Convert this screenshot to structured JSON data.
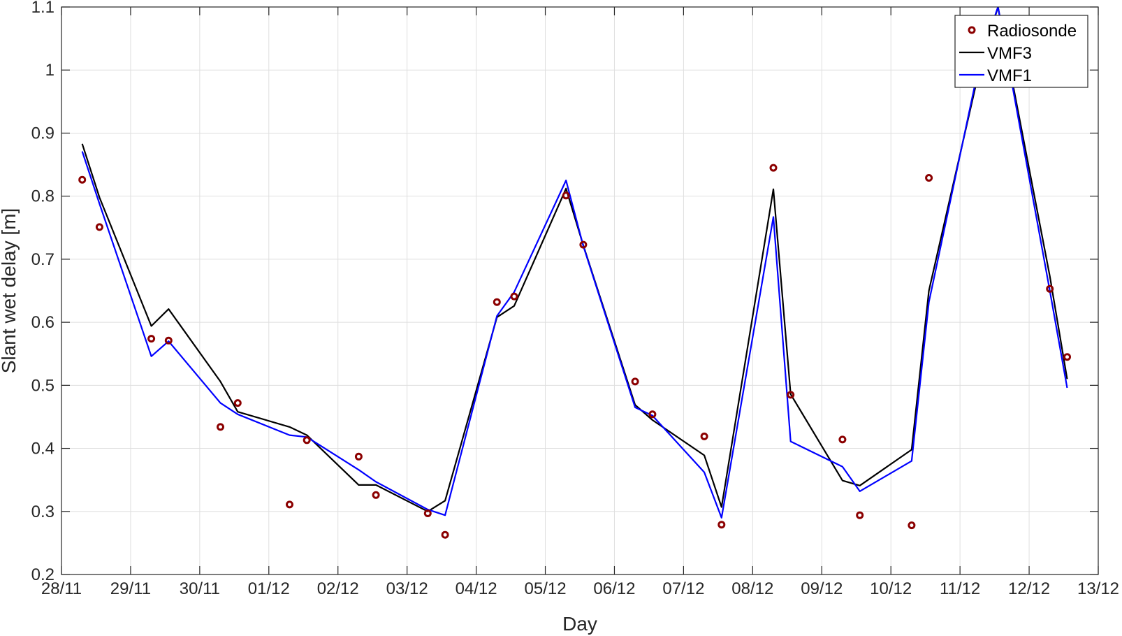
{
  "chart_data": {
    "type": "line",
    "xlabel": "Day",
    "ylabel": "Slant wet delay [m]",
    "xlim": [
      0,
      15
    ],
    "ylim": [
      0.2,
      1.1
    ],
    "x_ticks": [
      0,
      1,
      2,
      3,
      4,
      5,
      6,
      7,
      8,
      9,
      10,
      11,
      12,
      13,
      14,
      15
    ],
    "x_tick_labels": [
      "28/11",
      "29/11",
      "30/11",
      "01/12",
      "02/12",
      "03/12",
      "04/12",
      "05/12",
      "06/12",
      "07/12",
      "08/12",
      "09/12",
      "10/12",
      "11/12",
      "12/12",
      "13/12"
    ],
    "y_ticks": [
      0.2,
      0.3,
      0.4,
      0.5,
      0.6,
      0.7,
      0.8,
      0.9,
      1.0,
      1.1
    ],
    "y_tick_labels": [
      "0.2",
      "0.3",
      "0.4",
      "0.5",
      "0.6",
      "0.7",
      "0.8",
      "0.9",
      "1",
      "1.1"
    ],
    "grid": true,
    "legend_position": "top-right",
    "series": [
      {
        "name": "Radiosonde",
        "style": "markers",
        "color": "#8b0000",
        "x": [
          0.3,
          0.55,
          1.3,
          1.55,
          2.3,
          2.55,
          3.3,
          3.55,
          4.3,
          4.55,
          5.3,
          5.55,
          6.3,
          6.55,
          7.3,
          7.55,
          8.3,
          8.55,
          9.3,
          9.55,
          10.3,
          10.55,
          11.3,
          11.55,
          12.3,
          12.55,
          13.3,
          13.55,
          14.3,
          14.55
        ],
        "y": [
          0.826,
          0.751,
          0.574,
          0.571,
          0.434,
          0.472,
          0.311,
          0.413,
          0.387,
          0.326,
          0.297,
          0.263,
          0.632,
          0.641,
          0.801,
          0.723,
          0.506,
          0.454,
          0.419,
          0.279,
          0.845,
          0.485,
          0.414,
          0.294,
          0.278,
          0.829,
          1.025,
          1.055,
          0.653,
          0.545
        ]
      },
      {
        "name": "VMF3",
        "style": "line",
        "color": "#000000",
        "x": [
          0.3,
          0.55,
          1.3,
          1.55,
          2.3,
          2.55,
          3.3,
          3.55,
          4.3,
          4.55,
          5.3,
          5.55,
          6.3,
          6.55,
          7.3,
          7.55,
          8.3,
          8.55,
          9.3,
          9.55,
          10.3,
          10.55,
          11.3,
          11.55,
          12.3,
          12.55,
          13.3,
          13.55,
          14.3,
          14.55
        ],
        "y": [
          0.883,
          0.798,
          0.594,
          0.621,
          0.506,
          0.458,
          0.434,
          0.421,
          0.342,
          0.342,
          0.3,
          0.317,
          0.608,
          0.626,
          0.812,
          0.722,
          0.469,
          0.445,
          0.389,
          0.307,
          0.811,
          0.486,
          0.349,
          0.341,
          0.398,
          0.65,
          1.01,
          1.1,
          0.673,
          0.51
        ]
      },
      {
        "name": "VMF1",
        "style": "line",
        "color": "#0000ff",
        "x": [
          0.3,
          0.55,
          1.3,
          1.55,
          2.3,
          2.55,
          3.3,
          3.55,
          4.3,
          4.55,
          5.3,
          5.55,
          6.3,
          6.55,
          7.3,
          7.55,
          8.3,
          8.55,
          9.3,
          9.55,
          10.3,
          10.55,
          11.3,
          11.55,
          12.3,
          12.55,
          13.3,
          13.55,
          14.3,
          14.55
        ],
        "y": [
          0.871,
          0.788,
          0.546,
          0.57,
          0.472,
          0.454,
          0.421,
          0.418,
          0.366,
          0.347,
          0.303,
          0.294,
          0.61,
          0.648,
          0.825,
          0.721,
          0.465,
          0.452,
          0.362,
          0.29,
          0.767,
          0.411,
          0.371,
          0.332,
          0.38,
          0.632,
          1.02,
          1.1,
          0.65,
          0.496
        ]
      }
    ]
  }
}
